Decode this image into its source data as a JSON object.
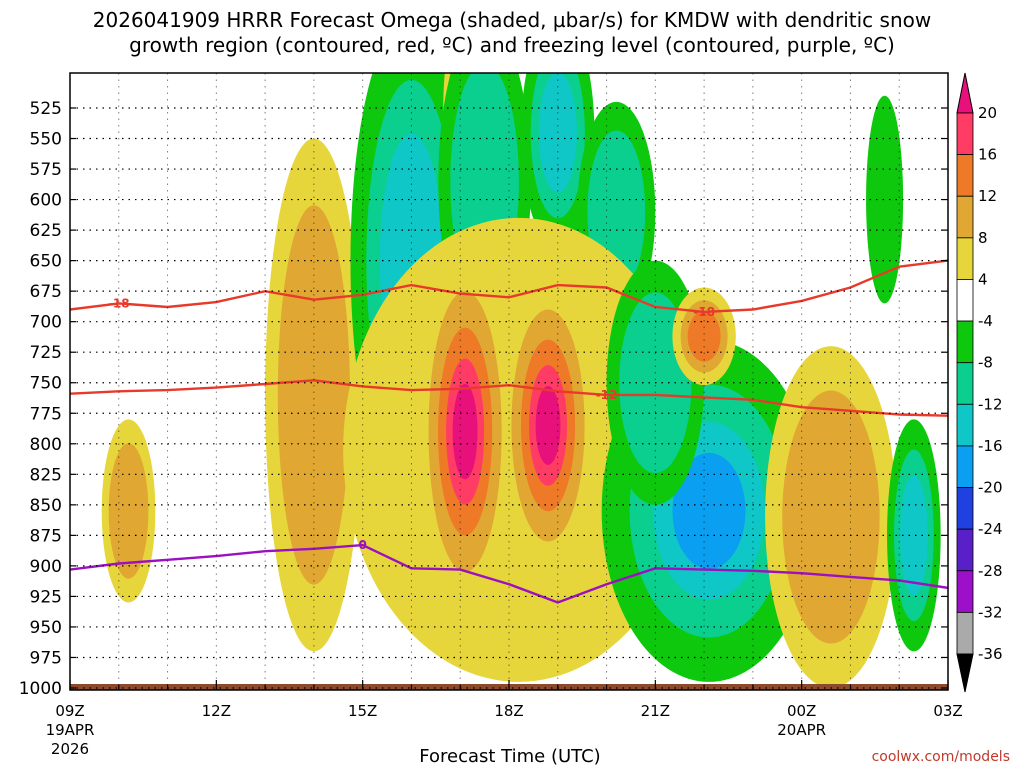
{
  "chart_data": {
    "type": "heatmap",
    "title_line1": "2026041909 HRRR Forecast Omega (shaded, µbar/s) for KMDW with dendritic snow",
    "title_line2": "growth region (contoured, red, ºC) and freezing level (contoured, purple, ºC)",
    "xlabel": "Forecast Time (UTC)",
    "credit": "coolwx.com/models",
    "x_range_hours": [
      0,
      18
    ],
    "y_range_hpa": [
      500,
      1010
    ],
    "y_ticks": [
      525,
      550,
      575,
      600,
      625,
      650,
      675,
      700,
      725,
      750,
      775,
      800,
      825,
      850,
      875,
      900,
      925,
      950,
      975,
      1000
    ],
    "x_ticks": [
      {
        "hour": 0,
        "label": "09Z",
        "sub1": "19APR",
        "sub2": "2026"
      },
      {
        "hour": 3,
        "label": "12Z",
        "sub1": "",
        "sub2": ""
      },
      {
        "hour": 6,
        "label": "15Z",
        "sub1": "",
        "sub2": ""
      },
      {
        "hour": 9,
        "label": "18Z",
        "sub1": "",
        "sub2": ""
      },
      {
        "hour": 12,
        "label": "21Z",
        "sub1": "",
        "sub2": ""
      },
      {
        "hour": 15,
        "label": "00Z",
        "sub1": "20APR",
        "sub2": ""
      },
      {
        "hour": 18,
        "label": "03Z",
        "sub1": "",
        "sub2": ""
      }
    ],
    "colorbar": {
      "labels": [
        "20",
        "16",
        "12",
        "8",
        "4",
        "-4",
        "-8",
        "-12",
        "-16",
        "-20",
        "-24",
        "-28",
        "-32",
        "-36"
      ],
      "colors": [
        "#ff3c64",
        "#ee7a28",
        "#e0a832",
        "#e6d63c",
        "#ffffff",
        "#0ec80e",
        "#0acf8e",
        "#0fc7c7",
        "#0a9ff0",
        "#2040e0",
        "#5a20c8",
        "#9b10c8",
        "#aaaaaa"
      ],
      "top_arrow": "#e8107a",
      "bottom_arrow": "#000000"
    },
    "omega_blobs": [
      {
        "t": 1.2,
        "p": 855,
        "w": 0.55,
        "h": 75,
        "cls": [
          4,
          8
        ]
      },
      {
        "t": 5.0,
        "p": 760,
        "w": 1.0,
        "h": 210,
        "cls": [
          4,
          8
        ]
      },
      {
        "t": 7.0,
        "p": 650,
        "w": 1.25,
        "h": 200,
        "cls": [
          -4,
          -8,
          -12
        ]
      },
      {
        "t": 8.0,
        "p": 530,
        "w": 0.35,
        "h": 80,
        "cls": [
          4,
          8
        ]
      },
      {
        "t": 8.5,
        "p": 585,
        "w": 0.95,
        "h": 130,
        "cls": [
          -4,
          -8
        ]
      },
      {
        "t": 10.0,
        "p": 545,
        "w": 0.75,
        "h": 95,
        "cls": [
          -4,
          -8,
          -12
        ]
      },
      {
        "t": 11.2,
        "p": 610,
        "w": 0.8,
        "h": 90,
        "cls": [
          -4,
          -8
        ]
      },
      {
        "t": 9.2,
        "p": 805,
        "w": 3.6,
        "h": 190,
        "cls": [
          4
        ]
      },
      {
        "t": 8.1,
        "p": 790,
        "w": 0.75,
        "h": 115,
        "cls": [
          8,
          12,
          16,
          20
        ]
      },
      {
        "t": 9.8,
        "p": 785,
        "w": 0.75,
        "h": 95,
        "cls": [
          8,
          12,
          16,
          20
        ]
      },
      {
        "t": 13.1,
        "p": 855,
        "w": 2.2,
        "h": 140,
        "cls": [
          -4,
          -8,
          -12,
          -16
        ]
      },
      {
        "t": 12.0,
        "p": 750,
        "w": 1.0,
        "h": 100,
        "cls": [
          -4,
          -8
        ]
      },
      {
        "t": 13.0,
        "p": 712,
        "w": 0.65,
        "h": 40,
        "cls": [
          4,
          8,
          12
        ]
      },
      {
        "t": 15.6,
        "p": 860,
        "w": 1.35,
        "h": 140,
        "cls": [
          4,
          8
        ]
      },
      {
        "t": 17.3,
        "p": 875,
        "w": 0.55,
        "h": 95,
        "cls": [
          -4,
          -8,
          -12
        ]
      },
      {
        "t": 16.7,
        "p": 600,
        "w": 0.38,
        "h": 85,
        "cls": [
          -4
        ]
      }
    ],
    "dgz_minus18": {
      "label": "-18",
      "hours": [
        0,
        1,
        2,
        3,
        4,
        5,
        6,
        7,
        8,
        9,
        10,
        11,
        12,
        13,
        14,
        15,
        16,
        17,
        18
      ],
      "hpa": [
        690,
        685,
        688,
        684,
        675,
        682,
        678,
        670,
        677,
        680,
        670,
        672,
        688,
        692,
        690,
        683,
        672,
        655,
        650
      ]
    },
    "dgz_minus12": {
      "label": "-12",
      "hours": [
        0,
        1,
        2,
        3,
        4,
        5,
        6,
        7,
        8,
        9,
        10,
        11,
        12,
        13,
        14,
        15,
        16,
        17,
        18
      ],
      "hpa": [
        759,
        757,
        756,
        754,
        751,
        748,
        753,
        756,
        755,
        752,
        757,
        760,
        760,
        762,
        764,
        770,
        773,
        776,
        777
      ]
    },
    "freezing_level": {
      "label": "0",
      "hours": [
        0,
        1,
        2,
        3,
        4,
        5,
        6,
        7,
        8,
        9,
        10,
        11,
        12,
        13,
        14,
        15,
        16,
        17,
        18
      ],
      "hpa": [
        903,
        898,
        895,
        892,
        888,
        886,
        883,
        902,
        903,
        915,
        930,
        915,
        902,
        903,
        904,
        906,
        909,
        912,
        918
      ]
    }
  }
}
